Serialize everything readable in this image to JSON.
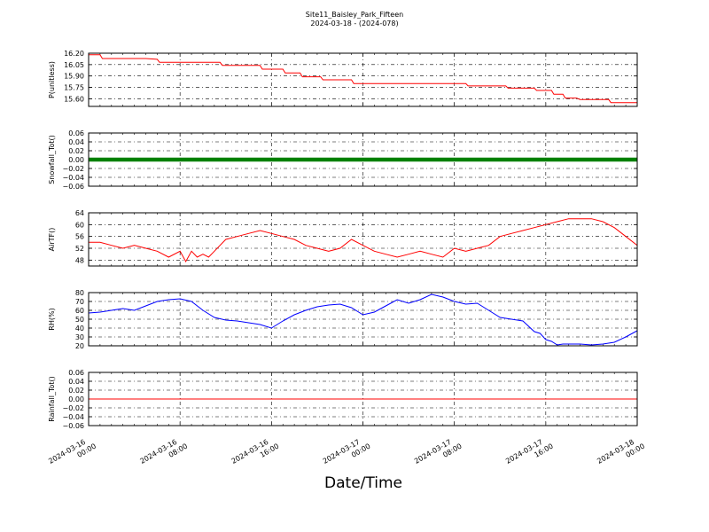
{
  "title_line1": "Site11_Baisley_Park_Fifteen",
  "title_line2": "2024-03-18 - (2024-078)",
  "xlabel": "Date/Time",
  "x_ticks": [
    [
      "2024-03-16",
      "00:00"
    ],
    [
      "2024-03-16",
      "08:00"
    ],
    [
      "2024-03-16",
      "16:00"
    ],
    [
      "2024-03-17",
      "00:00"
    ],
    [
      "2024-03-17",
      "08:00"
    ],
    [
      "2024-03-17",
      "16:00"
    ],
    [
      "2024-03-18",
      "00:00"
    ]
  ],
  "chart_data": [
    {
      "type": "line",
      "ylabel": "P(unitless)",
      "ylim": [
        15.5,
        16.2
      ],
      "yticks": [
        "16.20",
        "16.05",
        "15.90",
        "15.75",
        "15.60"
      ],
      "ytick_values": [
        16.2,
        16.05,
        15.9,
        15.75,
        15.6
      ],
      "grid": true,
      "series": [
        {
          "color": "#ff0000",
          "x_hours": [
            0,
            1,
            1.2,
            5,
            6,
            6.2,
            11.5,
            11.7,
            15,
            15.2,
            17,
            17.2,
            18.5,
            18.7,
            20.3,
            20.5,
            23,
            23.2,
            33,
            33.2,
            36.5,
            36.7,
            39,
            39.2,
            40.5,
            40.7,
            41.5,
            41.7,
            42.7,
            43,
            45.5,
            45.7,
            48
          ],
          "y": [
            16.18,
            16.18,
            16.13,
            16.13,
            16.12,
            16.08,
            16.08,
            16.04,
            16.04,
            15.99,
            15.99,
            15.94,
            15.94,
            15.89,
            15.89,
            15.85,
            15.85,
            15.8,
            15.8,
            15.77,
            15.77,
            15.74,
            15.74,
            15.71,
            15.71,
            15.66,
            15.66,
            15.61,
            15.61,
            15.59,
            15.59,
            15.55,
            15.55
          ]
        }
      ]
    },
    {
      "type": "scatter",
      "ylabel": "Snowfall_Tot()",
      "ylim": [
        -0.06,
        0.06
      ],
      "yticks": [
        "0.06",
        "0.04",
        "0.02",
        "0.00",
        "−0.02",
        "−0.04",
        "−0.06"
      ],
      "ytick_values": [
        0.06,
        0.04,
        0.02,
        0.0,
        -0.02,
        -0.04,
        -0.06
      ],
      "grid": true,
      "series": [
        {
          "color": "#008000",
          "constant": 0.0
        }
      ]
    },
    {
      "type": "line",
      "ylabel": "AirTF()",
      "ylim": [
        46,
        64
      ],
      "yticks": [
        "64",
        "60",
        "56",
        "52",
        "48"
      ],
      "ytick_values": [
        64,
        60,
        56,
        52,
        48
      ],
      "grid": true,
      "series": [
        {
          "color": "#ff0000",
          "x_hours": [
            0,
            1,
            2,
            3,
            4,
            5,
            6,
            7,
            8,
            8.5,
            9,
            9.5,
            10,
            10.5,
            11,
            12,
            13,
            14,
            15,
            16,
            17,
            18,
            19,
            20,
            21,
            22,
            23,
            24,
            25,
            26,
            27,
            28,
            29,
            30,
            31,
            32,
            33,
            34,
            35,
            36,
            37,
            38,
            39,
            40,
            41,
            42,
            43,
            44,
            45,
            46,
            47,
            48
          ],
          "y": [
            54,
            54,
            53,
            52,
            53,
            52,
            51,
            49,
            51,
            47.5,
            51,
            49,
            50,
            49,
            51,
            55,
            56,
            57,
            58,
            57,
            56,
            55,
            53,
            52,
            51,
            52,
            55,
            53,
            51,
            50,
            49,
            50,
            51,
            50,
            49,
            52,
            51,
            52,
            53,
            56,
            57,
            58,
            59,
            60,
            61,
            62,
            62,
            62,
            61,
            59,
            56,
            53
          ]
        }
      ]
    },
    {
      "type": "line",
      "ylabel": "RH(%)",
      "ylim": [
        20,
        80
      ],
      "yticks": [
        "80",
        "70",
        "60",
        "50",
        "40",
        "30",
        "20"
      ],
      "ytick_values": [
        80,
        70,
        60,
        50,
        40,
        30,
        20
      ],
      "grid": true,
      "series": [
        {
          "color": "#0000ff",
          "x_hours": [
            0,
            1,
            2,
            3,
            4,
            5,
            6,
            7,
            8,
            9,
            10,
            11,
            12,
            13,
            14,
            15,
            16,
            17,
            18,
            19,
            20,
            21,
            22,
            23,
            24,
            25,
            26,
            27,
            28,
            29,
            30,
            31,
            32,
            33,
            34,
            35,
            36,
            37,
            38,
            39,
            39.5,
            40,
            40.5,
            41,
            41.5,
            42,
            43,
            44,
            45,
            46,
            47,
            48
          ],
          "y": [
            57,
            58,
            60,
            62,
            60,
            65,
            70,
            72,
            73,
            70,
            60,
            52,
            49,
            48,
            46,
            44,
            40,
            48,
            55,
            60,
            64,
            66,
            67,
            63,
            55,
            58,
            65,
            72,
            68,
            72,
            78,
            75,
            70,
            67,
            68,
            60,
            52,
            50,
            48,
            36,
            34,
            27,
            25,
            21,
            22,
            22,
            22,
            21,
            22,
            24,
            30,
            37
          ]
        }
      ]
    },
    {
      "type": "line",
      "ylabel": "Rainfall_Tot()",
      "ylim": [
        -0.06,
        0.06
      ],
      "yticks": [
        "0.06",
        "0.04",
        "0.02",
        "0.00",
        "−0.02",
        "−0.04",
        "−0.06"
      ],
      "ytick_values": [
        0.06,
        0.04,
        0.02,
        0.0,
        -0.02,
        -0.04,
        -0.06
      ],
      "grid": true,
      "series": [
        {
          "color": "#ff0000",
          "constant": 0.0
        }
      ]
    }
  ]
}
